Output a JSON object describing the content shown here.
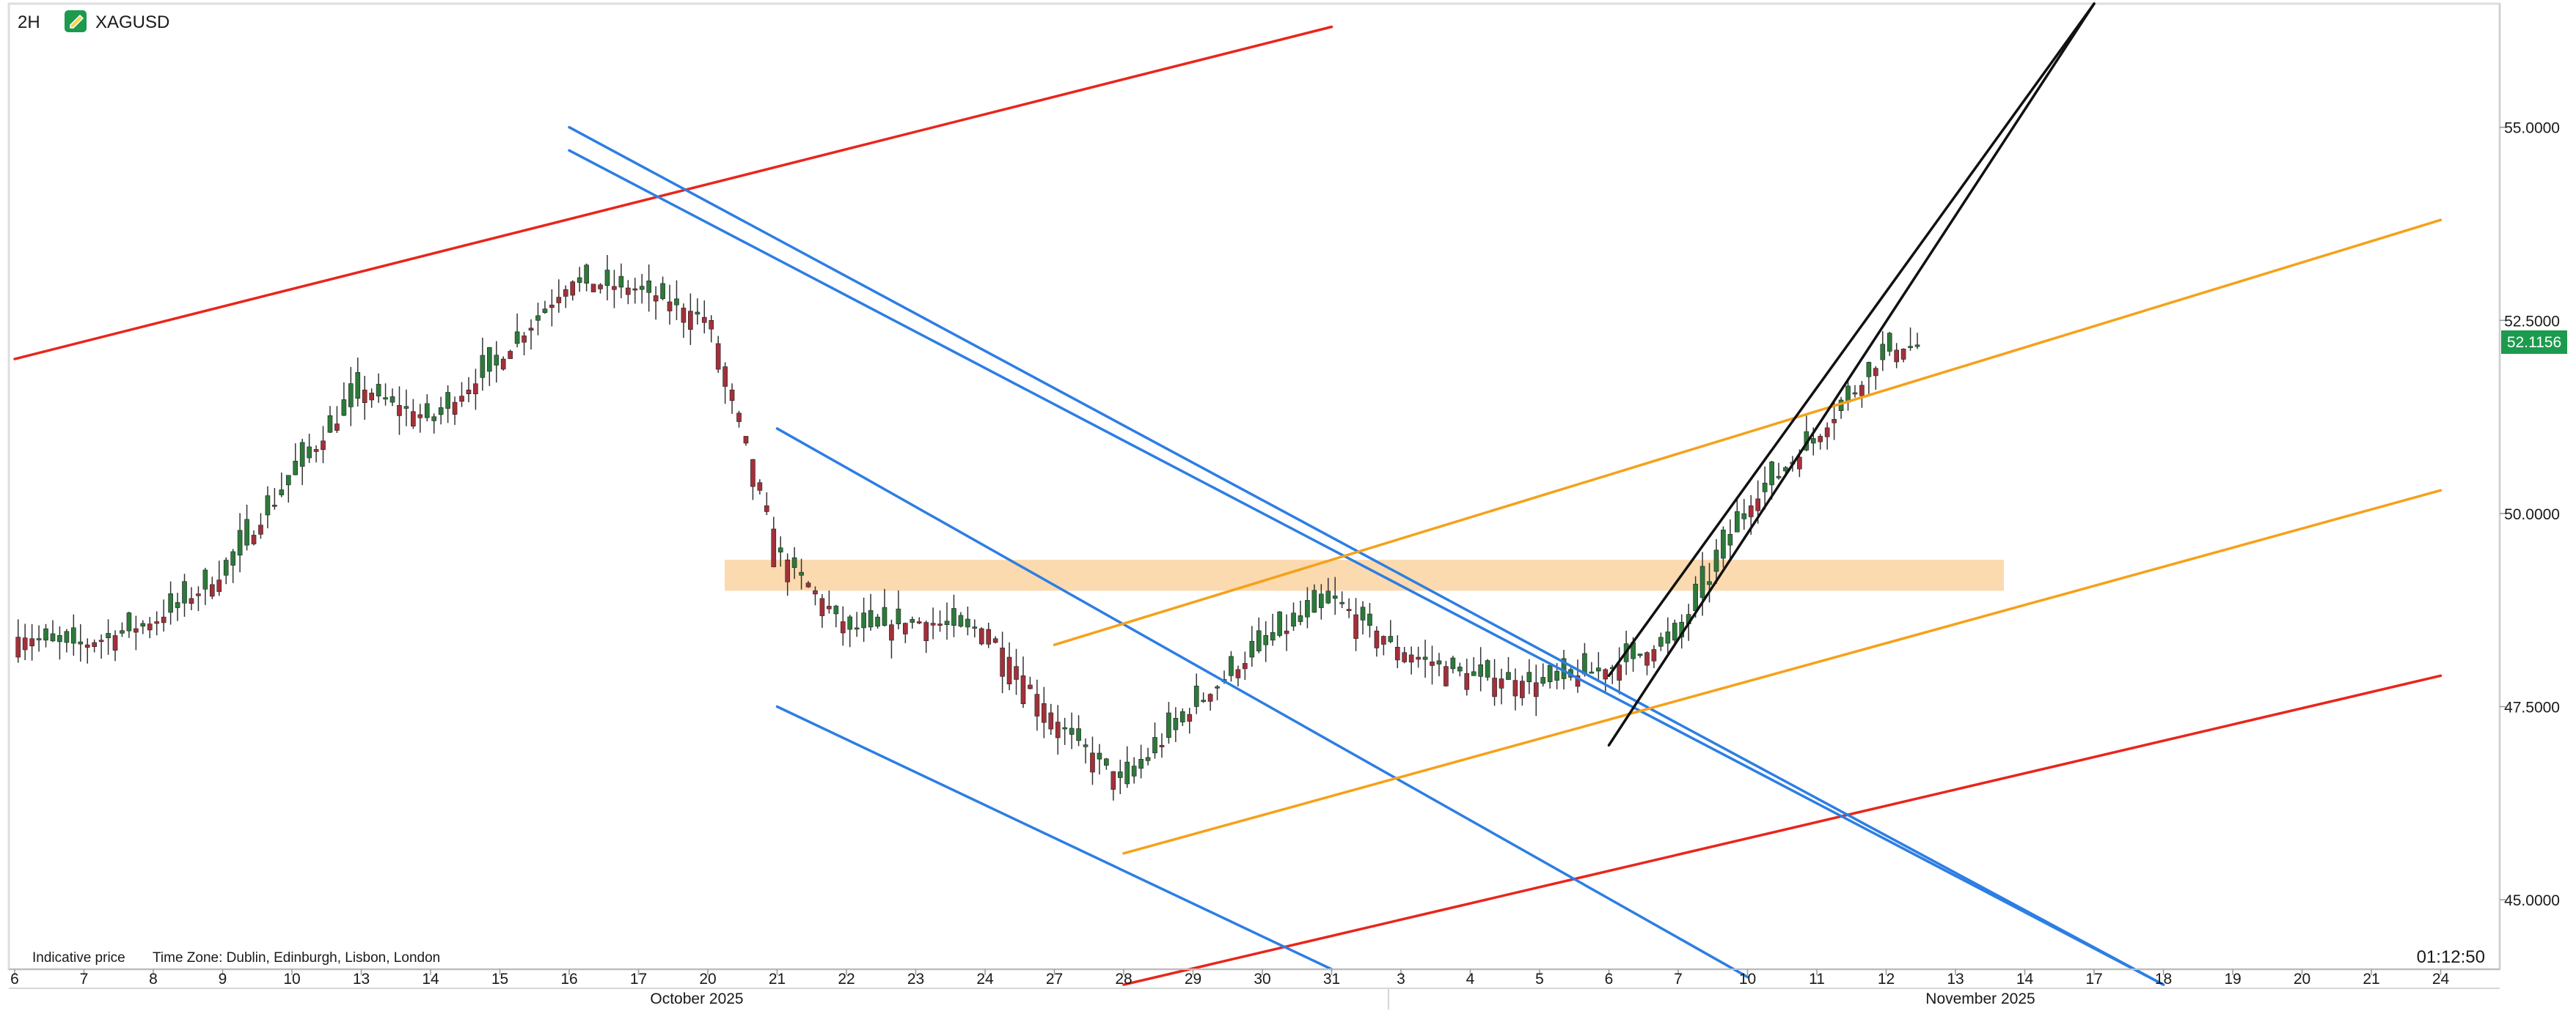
{
  "header": {
    "timeframe": "2H",
    "symbol": "XAGUSD",
    "symbol_icon": "pencil-icon"
  },
  "footer": {
    "note_price": "Indicative price",
    "note_timezone": "Time Zone: Dublin, Edinburgh, Lisbon, London",
    "countdown": "01:12:50"
  },
  "chart_data": {
    "type": "candlestick",
    "title": "",
    "xlabel": "",
    "ylabel": "",
    "ylim": [
      44.1,
      56.6
    ],
    "grid": false,
    "last_price_label": "52.1156",
    "last_price": 52.1156,
    "y_ticks": [
      {
        "value": 55,
        "label": "55.0000"
      },
      {
        "value": 52.5,
        "label": "52.5000"
      },
      {
        "value": 50,
        "label": "50.0000"
      },
      {
        "value": 47.5,
        "label": "47.5000"
      },
      {
        "value": 45,
        "label": "45.0000"
      }
    ],
    "x_ticks": [
      "6",
      "7",
      "8",
      "9",
      "10",
      "13",
      "14",
      "15",
      "16",
      "17",
      "20",
      "21",
      "22",
      "23",
      "24",
      "27",
      "28",
      "29",
      "30",
      "31",
      "3",
      "4",
      "5",
      "6",
      "7",
      "10",
      "11",
      "12",
      "13",
      "14",
      "17",
      "18",
      "19",
      "20",
      "21",
      "24"
    ],
    "months": [
      "October 2025",
      "November 2025"
    ],
    "anchors": [
      {
        "date": "Oct 6",
        "close": 48.4
      },
      {
        "date": "Oct 7",
        "close": 48.3
      },
      {
        "date": "Oct 8",
        "close": 48.6
      },
      {
        "date": "Oct 9",
        "close": 49.2
      },
      {
        "date": "Oct 10",
        "close": 50.5
      },
      {
        "date": "Oct 13",
        "close": 51.6
      },
      {
        "date": "Oct 14",
        "close": 51.2
      },
      {
        "date": "Oct 15",
        "close": 52.0
      },
      {
        "date": "Oct 16",
        "close": 53.0
      },
      {
        "date": "Oct 17",
        "close": 52.9
      },
      {
        "date": "Oct 20",
        "close": 52.5
      },
      {
        "date": "Oct 21",
        "close": 49.5
      },
      {
        "date": "Oct 22",
        "close": 48.5
      },
      {
        "date": "Oct 23",
        "close": 48.6
      },
      {
        "date": "Oct 24",
        "close": 48.5
      },
      {
        "date": "Oct 27",
        "close": 47.3
      },
      {
        "date": "Oct 28",
        "close": 46.5
      },
      {
        "date": "Oct 29",
        "close": 47.5
      },
      {
        "date": "Oct 30",
        "close": 48.3
      },
      {
        "date": "Oct 31",
        "close": 48.9
      },
      {
        "date": "Nov 3",
        "close": 48.2
      },
      {
        "date": "Nov 4",
        "close": 47.9
      },
      {
        "date": "Nov 5",
        "close": 47.8
      },
      {
        "date": "Nov 6",
        "close": 48.0
      },
      {
        "date": "Nov 7",
        "close": 48.4
      },
      {
        "date": "Nov 10",
        "close": 50.1
      },
      {
        "date": "Nov 11",
        "close": 51.0
      },
      {
        "date": "Nov 12",
        "close": 52.1
      }
    ],
    "trendlines": [
      {
        "name": "red-upper-trendline",
        "color": "#e8261b",
        "start": {
          "date": "Oct 6",
          "value": 52.0
        },
        "end": {
          "date": "Oct 31",
          "value": 56.3
        }
      },
      {
        "name": "red-lower-trendline",
        "color": "#e8261b",
        "start": {
          "date": "Oct 28",
          "value": 43.9
        },
        "end": {
          "date": "Nov 24",
          "value": 47.9
        }
      },
      {
        "name": "blue-falling-line-1",
        "color": "#2d7ee3",
        "start": {
          "date": "Oct 16",
          "value": 55.0
        },
        "end": {
          "date": "Nov 18",
          "value": 43.9
        }
      },
      {
        "name": "blue-falling-line-2",
        "color": "#2d7ee3",
        "start": {
          "date": "Oct 16",
          "value": 54.7
        },
        "end": {
          "date": "Nov 18",
          "value": 43.9
        }
      },
      {
        "name": "blue-channel-upper",
        "color": "#2d7ee3",
        "start": {
          "date": "Oct 21",
          "value": 51.1
        },
        "end": {
          "date": "Nov 10",
          "value": 44.0
        }
      },
      {
        "name": "blue-channel-lower",
        "color": "#2d7ee3",
        "start": {
          "date": "Oct 21",
          "value": 47.5
        },
        "end": {
          "date": "Oct 31",
          "value": 44.1
        }
      },
      {
        "name": "orange-upper-line",
        "color": "#f5a11a",
        "start": {
          "date": "Oct 27",
          "value": 48.3
        },
        "end": {
          "date": "Nov 24",
          "value": 53.8
        }
      },
      {
        "name": "orange-lower-line",
        "color": "#f5a11a",
        "start": {
          "date": "Oct 28",
          "value": 45.6
        },
        "end": {
          "date": "Nov 24",
          "value": 50.3
        }
      },
      {
        "name": "black-channel-upper",
        "color": "#111111",
        "start": {
          "date": "Nov 6",
          "value": 47.9
        },
        "end": {
          "date": "Nov 17",
          "value": 56.6
        }
      },
      {
        "name": "black-channel-lower",
        "color": "#111111",
        "start": {
          "date": "Nov 6",
          "value": 47.0
        },
        "end": {
          "date": "Nov 17",
          "value": 56.6
        }
      }
    ],
    "zones": [
      {
        "name": "resistance-zone",
        "color": "#fcd6a6",
        "from": "Oct 20",
        "to": "Nov 13",
        "low": 49.0,
        "high": 49.4
      }
    ],
    "colors": {
      "up_candle": "#2c7a3a",
      "down_candle": "#a3303a",
      "wick": "#333333",
      "price_badge": "#1c9a4e"
    }
  }
}
